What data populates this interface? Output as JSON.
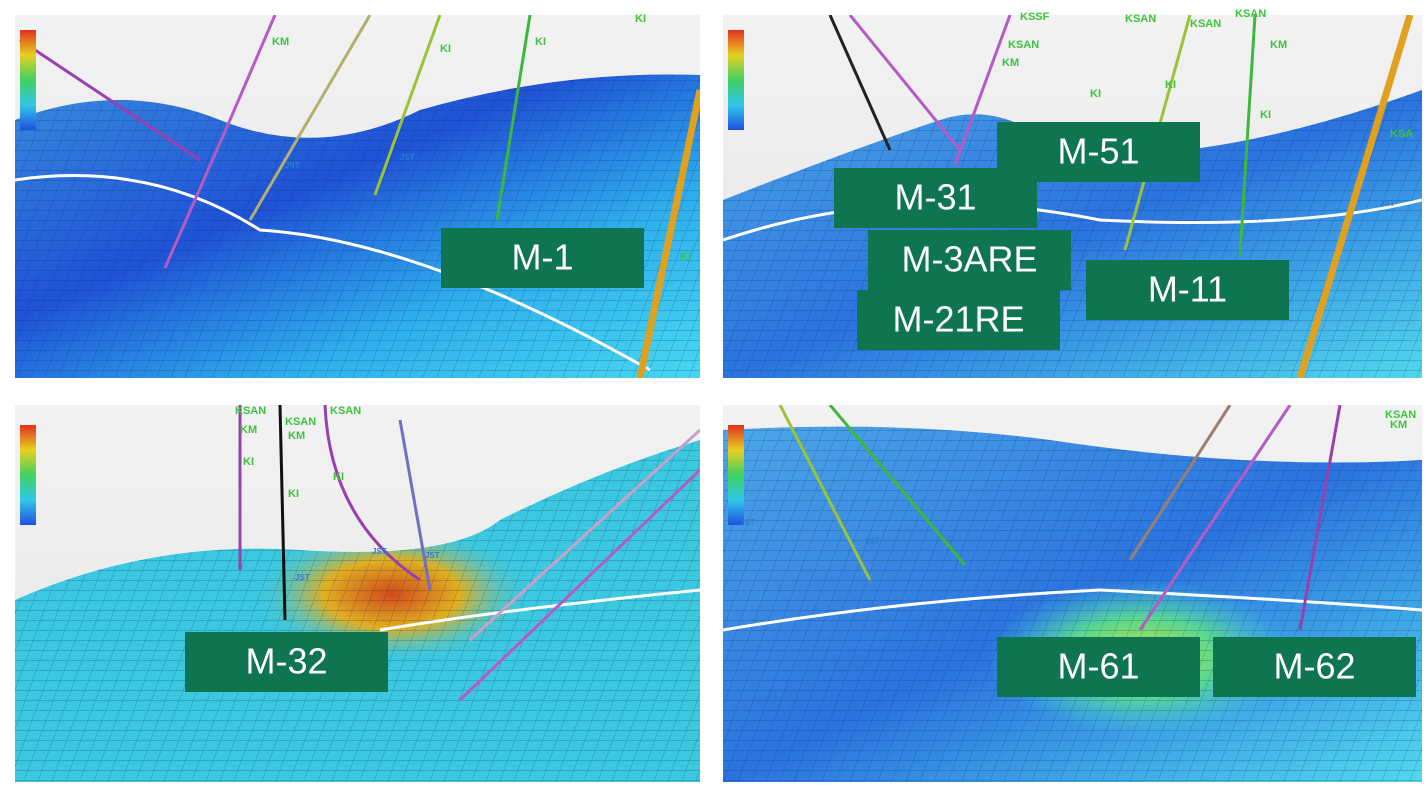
{
  "panels": [
    {
      "labels": [
        "M-1"
      ],
      "formations": [
        "KM",
        "KI",
        "KI",
        "KI",
        "JST",
        "JST",
        "JST",
        "JST",
        "KI"
      ]
    },
    {
      "labels": [
        "M-51",
        "M-31",
        "M-3ARE",
        "M-11",
        "M-21RE"
      ],
      "formations": [
        "KSSF",
        "KSAN",
        "KSAN",
        "KSAN",
        "KSAN",
        "KM",
        "KM",
        "KI",
        "KI",
        "KI",
        "KSA",
        "JST",
        "JST",
        "JST",
        "JST"
      ]
    },
    {
      "labels": [
        "M-32"
      ],
      "formations": [
        "KSAN",
        "KM",
        "KSAN",
        "KM",
        "KSAN",
        "KI",
        "KI",
        "KI",
        "JST",
        "JST",
        "JST"
      ]
    },
    {
      "labels": [
        "M-61",
        "M-62"
      ],
      "formations": [
        "KSAN",
        "KM",
        "JST",
        "JST",
        "JST"
      ]
    }
  ]
}
